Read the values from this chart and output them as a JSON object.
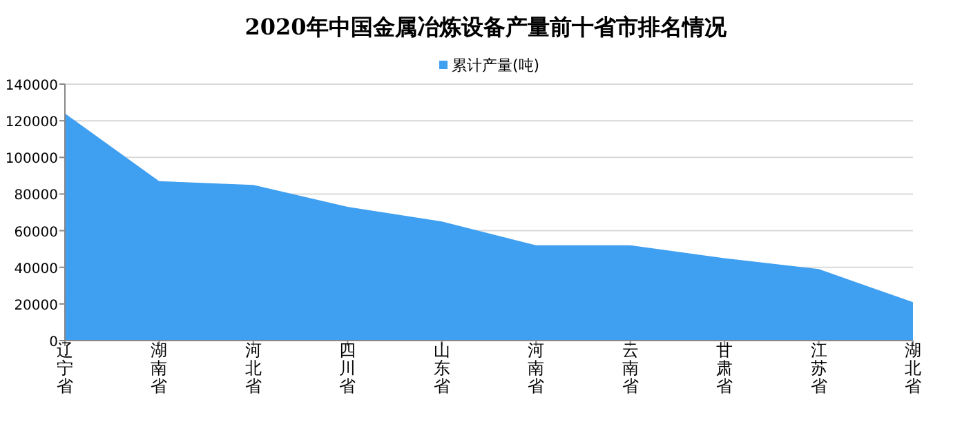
{
  "chart_data": {
    "type": "area",
    "title": "2020年中国金属冶炼设备产量前十省市排名情况",
    "categories": [
      "辽宁省",
      "湖南省",
      "河北省",
      "四川省",
      "山东省",
      "河南省",
      "云南省",
      "甘肃省",
      "江苏省",
      "湖北省"
    ],
    "series": [
      {
        "name": "累计产量(吨)",
        "color": "#3f9ff0",
        "values": [
          124000,
          87000,
          85000,
          73000,
          65000,
          52000,
          52000,
          45000,
          39000,
          21000
        ]
      }
    ],
    "ylim": [
      0,
      140000
    ],
    "yticks": [
      0,
      20000,
      40000,
      60000,
      80000,
      100000,
      120000,
      140000
    ],
    "grid": "y",
    "legend": "top"
  }
}
